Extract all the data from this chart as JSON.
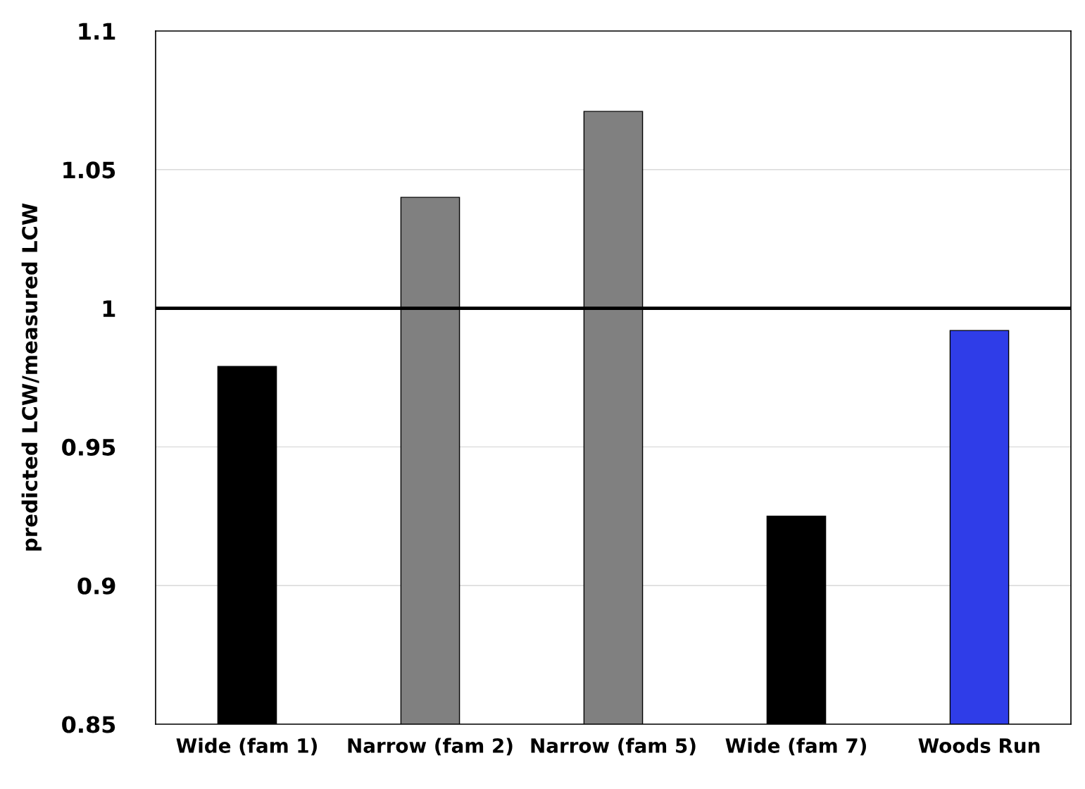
{
  "chart_data": {
    "type": "bar",
    "ylabel": "predicted LCW/measured LCW",
    "categories": [
      "Wide (fam 1)",
      "Narrow (fam 2)",
      "Narrow (fam 5)",
      "Wide (fam 7)",
      "Woods Run"
    ],
    "values": [
      0.979,
      1.04,
      1.071,
      0.925,
      0.992
    ],
    "colors": [
      "#000000",
      "#808080",
      "#808080",
      "#000000",
      "#2f3de8"
    ],
    "ylim": [
      0.85,
      1.1
    ],
    "yticks": [
      0.85,
      0.9,
      0.95,
      1,
      1.05,
      1.1
    ],
    "grid": "y",
    "ref_lines": [
      {
        "axis": "y",
        "value": 1.0,
        "color": "#000000"
      }
    ]
  }
}
